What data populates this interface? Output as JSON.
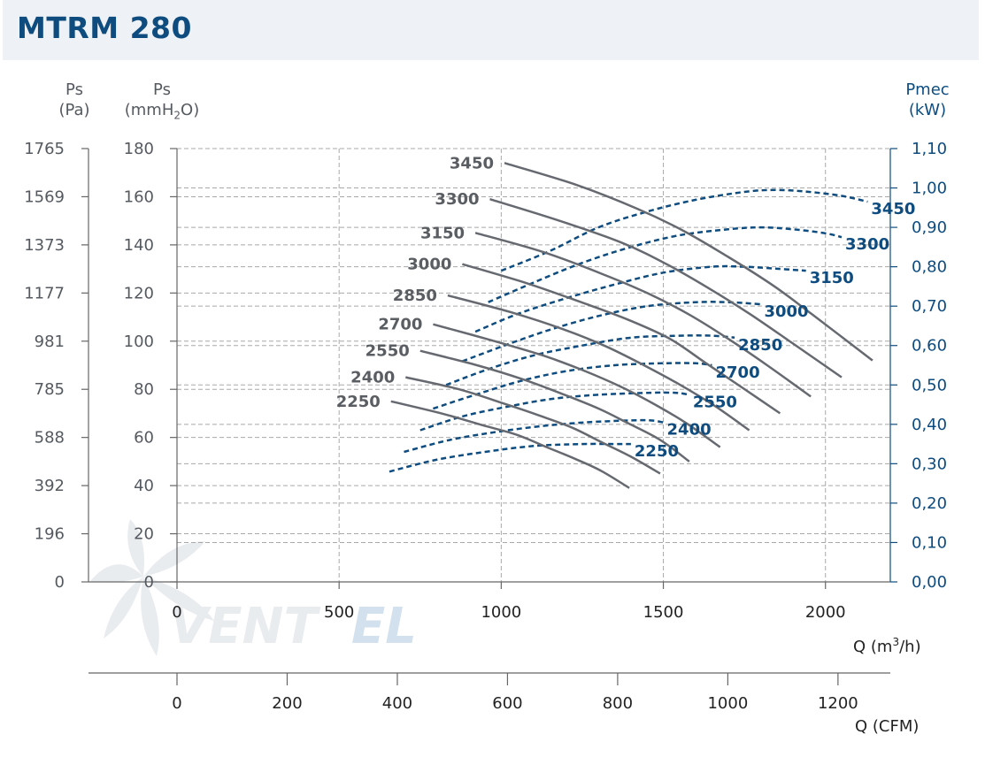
{
  "page": {
    "title": "MTRM 280"
  },
  "axes_text": {
    "ps_pa": [
      "Ps",
      "(Pa)"
    ],
    "ps_mm": [
      "Ps",
      "(mmH",
      "2",
      "O)"
    ],
    "pmec": [
      "Pmec",
      "(kW)"
    ],
    "q_m3h": [
      "Q (m",
      "3",
      "/h)"
    ],
    "q_cfm": "Q (CFM)"
  },
  "chart_data": {
    "type": "line",
    "title": "MTRM 280",
    "xlabel": "Q (m3/h)",
    "x2label": "Q (CFM)",
    "ylabel_left_pa": "Ps (Pa)",
    "ylabel_left_mm": "Ps (mmH2O)",
    "ylabel_right": "Pmec (kW)",
    "xlim": [
      0,
      2200
    ],
    "ylim": [
      0,
      180
    ],
    "y2lim": [
      0,
      1.1
    ],
    "cfm_lim": [
      0,
      1295
    ],
    "x_ticks": [
      "0",
      "500",
      "1000",
      "1500",
      "2000"
    ],
    "cfm_ticks": [
      "0",
      "200",
      "400",
      "600",
      "800",
      "1000",
      "1200"
    ],
    "y_ticks_mm": [
      "0",
      "20",
      "40",
      "60",
      "80",
      "100",
      "120",
      "140",
      "160",
      "180"
    ],
    "y_ticks_pa": [
      "0",
      "196",
      "392",
      "588",
      "785",
      "981",
      "1177",
      "1373",
      "1569",
      "1765"
    ],
    "y2_ticks": [
      "0,00",
      "0,10",
      "0,20",
      "0,30",
      "0,40",
      "0,50",
      "0,60",
      "0,70",
      "0,80",
      "0,90",
      "1,00",
      "1,10"
    ],
    "grid": true,
    "colors": {
      "pressure": "#666a70",
      "power": "#0e4c7f",
      "grid": "#a8a8a8"
    },
    "pressure_series": [
      {
        "name": "3450",
        "x": [
          1010,
          1230,
          1420,
          1560,
          1700,
          1840,
          1960,
          2145
        ],
        "y": [
          174,
          165,
          155,
          146,
          135,
          123,
          111,
          92
        ]
      },
      {
        "name": "3300",
        "x": [
          965,
          1180,
          1370,
          1510,
          1640,
          1770,
          1900,
          2050
        ],
        "y": [
          159,
          150,
          141,
          132,
          122,
          111,
          99,
          85
        ]
      },
      {
        "name": "3150",
        "x": [
          920,
          1130,
          1310,
          1450,
          1580,
          1700,
          1820,
          1955
        ],
        "y": [
          145,
          137,
          128,
          120,
          111,
          101,
          90,
          77
        ]
      },
      {
        "name": "3000",
        "x": [
          880,
          1080,
          1250,
          1390,
          1520,
          1630,
          1740,
          1860
        ],
        "y": [
          132,
          124,
          116,
          109,
          101,
          91,
          81,
          70
        ]
      },
      {
        "name": "2850",
        "x": [
          835,
          1030,
          1190,
          1320,
          1440,
          1550,
          1660,
          1765
        ],
        "y": [
          119,
          112,
          105,
          98,
          90,
          82,
          73,
          63
        ]
      },
      {
        "name": "2700",
        "x": [
          790,
          980,
          1130,
          1250,
          1370,
          1470,
          1570,
          1675
        ],
        "y": [
          107,
          100,
          94,
          88,
          81,
          74,
          66,
          56
        ]
      },
      {
        "name": "2550",
        "x": [
          750,
          925,
          1070,
          1190,
          1300,
          1390,
          1490,
          1580
        ],
        "y": [
          96,
          90,
          84,
          78,
          72,
          66,
          59,
          50
        ]
      },
      {
        "name": "2400",
        "x": [
          705,
          870,
          1010,
          1120,
          1220,
          1310,
          1400,
          1490
        ],
        "y": [
          85,
          80,
          74,
          69,
          64,
          58,
          52,
          45
        ]
      },
      {
        "name": "2250",
        "x": [
          660,
          815,
          945,
          1050,
          1140,
          1230,
          1310,
          1395
        ],
        "y": [
          75,
          70,
          65,
          61,
          56,
          51,
          46,
          39
        ]
      }
    ],
    "power_series": [
      {
        "name": "3450",
        "x": [
          1000,
          1150,
          1300,
          1450,
          1600,
          1750,
          1850,
          1950,
          2050,
          2130
        ],
        "y": [
          0.79,
          0.84,
          0.9,
          0.94,
          0.97,
          0.99,
          0.995,
          0.99,
          0.98,
          0.965
        ]
      },
      {
        "name": "3300",
        "x": [
          960,
          1100,
          1250,
          1400,
          1550,
          1700,
          1800,
          1900,
          2000,
          2050
        ],
        "y": [
          0.71,
          0.76,
          0.81,
          0.85,
          0.88,
          0.895,
          0.9,
          0.895,
          0.885,
          0.875
        ]
      },
      {
        "name": "3150",
        "x": [
          920,
          1050,
          1200,
          1350,
          1500,
          1650,
          1750,
          1850,
          1940
        ],
        "y": [
          0.635,
          0.68,
          0.72,
          0.755,
          0.785,
          0.8,
          0.8,
          0.795,
          0.79
        ]
      },
      {
        "name": "3000",
        "x": [
          880,
          1010,
          1150,
          1300,
          1450,
          1600,
          1700,
          1800
        ],
        "y": [
          0.56,
          0.6,
          0.64,
          0.675,
          0.7,
          0.71,
          0.71,
          0.705
        ]
      },
      {
        "name": "2850",
        "x": [
          830,
          960,
          1100,
          1250,
          1400,
          1550,
          1650,
          1720
        ],
        "y": [
          0.5,
          0.54,
          0.575,
          0.6,
          0.62,
          0.625,
          0.625,
          0.62
        ]
      },
      {
        "name": "2700",
        "x": [
          790,
          920,
          1060,
          1200,
          1350,
          1500,
          1600,
          1650
        ],
        "y": [
          0.44,
          0.475,
          0.51,
          0.535,
          0.55,
          0.555,
          0.555,
          0.55
        ]
      },
      {
        "name": "2550",
        "x": [
          750,
          880,
          1020,
          1160,
          1300,
          1450,
          1540,
          1580
        ],
        "y": [
          0.385,
          0.42,
          0.445,
          0.465,
          0.475,
          0.48,
          0.48,
          0.475
        ]
      },
      {
        "name": "2400",
        "x": [
          700,
          840,
          980,
          1120,
          1260,
          1400,
          1460,
          1500
        ],
        "y": [
          0.33,
          0.36,
          0.38,
          0.395,
          0.405,
          0.41,
          0.41,
          0.405
        ]
      },
      {
        "name": "2250",
        "x": [
          655,
          800,
          950,
          1100,
          1250,
          1350,
          1400
        ],
        "y": [
          0.28,
          0.31,
          0.33,
          0.345,
          0.35,
          0.35,
          0.35
        ]
      }
    ],
    "watermark": "VENTEL"
  }
}
